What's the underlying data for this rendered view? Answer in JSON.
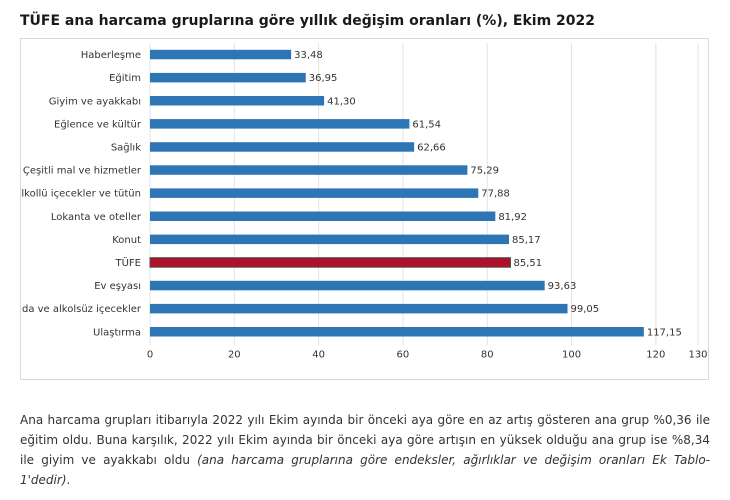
{
  "chart_data": {
    "type": "bar",
    "orientation": "horizontal",
    "title": "TÜFE ana harcama gruplarına göre yıllık değişim oranları (%), Ekim 2022",
    "categories": [
      "Haberleşme",
      "Eğitim",
      "Giyim ve ayakkabı",
      "Eğlence ve kültür",
      "Sağlık",
      "Çeşitli mal ve hizmetler",
      "Alkollü içecekler ve tütün",
      "Lokanta ve oteller",
      "Konut",
      "TÜFE",
      "Ev eşyası",
      "Gıda ve alkolsüz içecekler",
      "Ulaştırma"
    ],
    "values": [
      33.48,
      36.95,
      41.3,
      61.54,
      62.66,
      75.29,
      77.88,
      81.92,
      85.17,
      85.51,
      93.63,
      99.05,
      117.15
    ],
    "value_labels": [
      "33,48",
      "36,95",
      "41,30",
      "61,54",
      "62,66",
      "75,29",
      "77,88",
      "81,92",
      "85,17",
      "85,51",
      "93,63",
      "99,05",
      "117,15"
    ],
    "highlight_category": "TÜFE",
    "xlim": [
      0,
      130
    ],
    "x_ticks": [
      0,
      20,
      40,
      60,
      80,
      100,
      120,
      130
    ],
    "colors": {
      "bar": "#2e75b6",
      "highlight": "#b0112a",
      "highlight_outline": "#4a4a4a"
    },
    "grid": true
  },
  "text": {
    "p1": "Ana harcama grupları itibarıyla 2022 yılı Ekim ayında bir önceki aya göre en az artış gösteren ana grup %0,36 ile eğitim oldu. Buna karşılık, 2022 yılı Ekim ayında bir önceki aya göre artışın en yüksek olduğu ana grup ise %8,34 ile giyim ve ayakkabı oldu ",
    "p1_italic": "(ana harcama gruplarına göre endeksler, ağırlıklar ve değişim oranları Ek Tablo-1'dedir)",
    "p1_end": "."
  }
}
